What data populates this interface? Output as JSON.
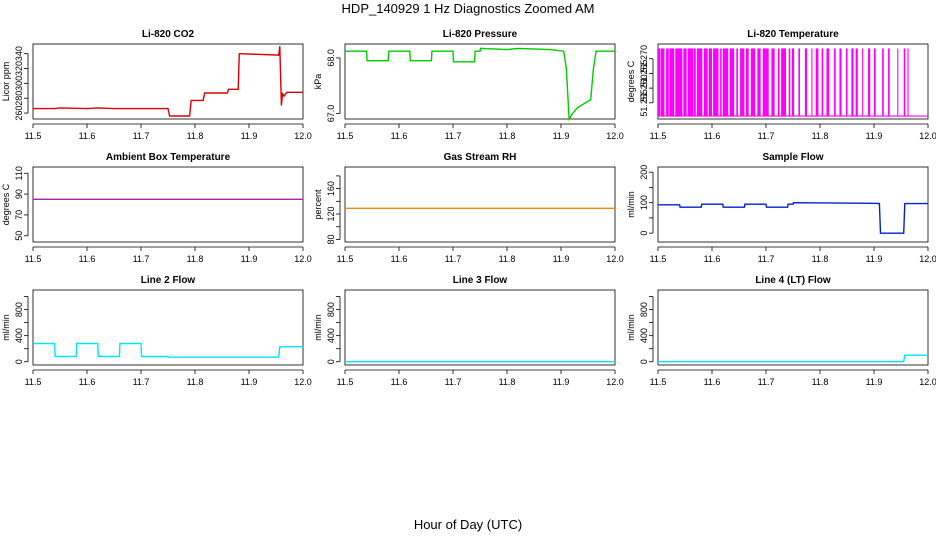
{
  "figure": {
    "title": "HDP_140929  1 Hz Diagnostics Zoomed AM",
    "xlabel": "Hour of Day (UTC)"
  },
  "chart_data": [
    {
      "type": "line",
      "title": "Li-820 CO2",
      "ylabel": "Licor ppm",
      "xlim": [
        11.5,
        12.0
      ],
      "ylim": [
        252,
        353
      ],
      "xticks": [
        11.5,
        11.6,
        11.7,
        11.8,
        11.9,
        12.0
      ],
      "xtick_labels": [
        "11.5",
        "11.6",
        "11.7",
        "11.8",
        "11.9",
        "12.0"
      ],
      "yticks": [
        260,
        280,
        300,
        320,
        340
      ],
      "ytick_labels": [
        "260",
        "280",
        "300",
        "320",
        "340"
      ],
      "color": "#dd0000",
      "series": [
        {
          "name": "CO2",
          "x": [
            11.5,
            11.54,
            11.55,
            11.6,
            11.62,
            11.65,
            11.7,
            11.75,
            11.753,
            11.79,
            11.793,
            11.815,
            11.818,
            11.86,
            11.862,
            11.88,
            11.882,
            11.955,
            11.957,
            11.958,
            11.96,
            11.962,
            11.965,
            11.97,
            11.98,
            12.0
          ],
          "y": [
            266,
            266,
            267,
            266,
            267,
            266,
            266,
            266,
            256,
            256,
            277,
            277,
            287,
            287,
            292,
            292,
            340,
            338,
            350,
            325,
            270,
            286,
            283,
            288,
            288,
            288
          ]
        }
      ]
    },
    {
      "type": "line",
      "title": "Li-820 Pressure",
      "ylabel": "kPa",
      "xlim": [
        11.5,
        12.0
      ],
      "ylim": [
        66.9,
        68.25
      ],
      "xticks": [
        11.5,
        11.6,
        11.7,
        11.8,
        11.9,
        12.0
      ],
      "xtick_labels": [
        "11.5",
        "11.6",
        "11.7",
        "11.8",
        "11.9",
        "12.0"
      ],
      "yticks": [
        67.0,
        68.0
      ],
      "ytick_labels": [
        "67.0",
        "68.0"
      ],
      "color": "#00cc00",
      "series": [
        {
          "name": "Pressure",
          "x": [
            11.5,
            11.54,
            11.541,
            11.58,
            11.581,
            11.62,
            11.621,
            11.66,
            11.661,
            11.7,
            11.701,
            11.74,
            11.741,
            11.75,
            11.751,
            11.8,
            11.82,
            11.88,
            11.905,
            11.91,
            11.915,
            11.92,
            11.93,
            11.955,
            11.96,
            11.965,
            11.97,
            12.0
          ],
          "y": [
            68.12,
            68.12,
            67.95,
            67.95,
            68.12,
            68.12,
            67.95,
            67.95,
            68.12,
            68.12,
            67.93,
            67.93,
            68.12,
            68.12,
            68.17,
            68.15,
            68.17,
            68.15,
            68.12,
            67.8,
            66.9,
            66.98,
            67.1,
            67.25,
            67.8,
            68.12,
            68.12,
            68.12
          ]
        }
      ]
    },
    {
      "type": "line",
      "title": "Li-820 Temperature",
      "ylabel": "degrees C",
      "xlim": [
        11.5,
        12.0
      ],
      "ylim": [
        51.2495,
        51.275
      ],
      "xticks": [
        11.5,
        11.6,
        11.7,
        11.8,
        11.9,
        12.0
      ],
      "xtick_labels": [
        "11.5",
        "11.6",
        "11.7",
        "11.8",
        "11.9",
        "12.0"
      ],
      "yticks": [
        51.255,
        51.26,
        51.265,
        51.27
      ],
      "ytick_labels": [
        "51.255",
        "51.260",
        "51.265",
        "51.270"
      ],
      "color": "#ff00ff",
      "low_value": 51.2505,
      "high_value": 51.2735,
      "high_intervals": [
        [
          11.5,
          11.504
        ],
        [
          11.505,
          11.512
        ],
        [
          11.515,
          11.52
        ],
        [
          11.521,
          11.53
        ],
        [
          11.532,
          11.545
        ],
        [
          11.547,
          11.553
        ],
        [
          11.555,
          11.565
        ],
        [
          11.566,
          11.57
        ],
        [
          11.572,
          11.582
        ],
        [
          11.585,
          11.592
        ],
        [
          11.594,
          11.6
        ],
        [
          11.602,
          11.612
        ],
        [
          11.615,
          11.618
        ],
        [
          11.62,
          11.63
        ],
        [
          11.633,
          11.641
        ],
        [
          11.645,
          11.648
        ],
        [
          11.652,
          11.66
        ],
        [
          11.663,
          11.668
        ],
        [
          11.672,
          11.68
        ],
        [
          11.684,
          11.69
        ],
        [
          11.694,
          11.705
        ],
        [
          11.71,
          11.716
        ],
        [
          11.722,
          11.725
        ],
        [
          11.728,
          11.737
        ],
        [
          11.742,
          11.745
        ],
        [
          11.748,
          11.752
        ],
        [
          11.76,
          11.763
        ],
        [
          11.772,
          11.776
        ],
        [
          11.784,
          11.786
        ],
        [
          11.792,
          11.797
        ],
        [
          11.803,
          11.806
        ],
        [
          11.812,
          11.817
        ],
        [
          11.826,
          11.829
        ],
        [
          11.836,
          11.84
        ],
        [
          11.848,
          11.851
        ],
        [
          11.858,
          11.862
        ],
        [
          11.866,
          11.87
        ],
        [
          11.878,
          11.88
        ],
        [
          11.889,
          11.893
        ],
        [
          11.9,
          11.903
        ],
        [
          11.915,
          11.918
        ],
        [
          11.926,
          11.929
        ],
        [
          11.943,
          11.945
        ],
        [
          11.955,
          11.958
        ],
        [
          11.962,
          11.964
        ]
      ]
    },
    {
      "type": "line",
      "title": "Ambient Box Temperature",
      "ylabel": "degrees C",
      "xlim": [
        11.5,
        12.0
      ],
      "ylim": [
        44,
        116
      ],
      "xticks": [
        11.5,
        11.6,
        11.7,
        11.8,
        11.9,
        12.0
      ],
      "xtick_labels": [
        "11.5",
        "11.6",
        "11.7",
        "11.8",
        "11.9",
        "12.0"
      ],
      "yticks": [
        50,
        70,
        90,
        110
      ],
      "ytick_labels": [
        "50",
        "70",
        "90",
        "110"
      ],
      "color": "#aa22aa",
      "series": [
        {
          "name": "Ambient",
          "x": [
            11.5,
            12.0
          ],
          "y": [
            85,
            85
          ]
        }
      ]
    },
    {
      "type": "line",
      "title": "Gas Stream RH",
      "ylabel": "percent",
      "xlim": [
        11.5,
        12.0
      ],
      "ylim": [
        76,
        194
      ],
      "xticks": [
        11.5,
        11.6,
        11.7,
        11.8,
        11.9,
        12.0
      ],
      "xtick_labels": [
        "11.5",
        "11.6",
        "11.7",
        "11.8",
        "11.9",
        "12.0"
      ],
      "yticks": [
        80,
        100,
        120,
        140,
        160,
        180
      ],
      "ytick_labels": [
        "80",
        "",
        "120",
        "",
        "160",
        ""
      ],
      "color": "#ff8800",
      "series": [
        {
          "name": "RH",
          "x": [
            11.5,
            12.0
          ],
          "y": [
            129,
            129
          ]
        }
      ]
    },
    {
      "type": "line",
      "title": "Sample Flow",
      "ylabel": "ml/min",
      "xlim": [
        11.5,
        12.0
      ],
      "ylim": [
        -29,
        217
      ],
      "xticks": [
        11.5,
        11.6,
        11.7,
        11.8,
        11.9,
        12.0
      ],
      "xtick_labels": [
        "11.5",
        "11.6",
        "11.7",
        "11.8",
        "11.9",
        "12.0"
      ],
      "yticks": [
        0,
        50,
        100,
        150,
        200
      ],
      "ytick_labels": [
        "0",
        "",
        "100",
        "",
        "200"
      ],
      "color": "#0022cc",
      "series": [
        {
          "name": "Flow",
          "x": [
            11.5,
            11.54,
            11.541,
            11.58,
            11.581,
            11.62,
            11.621,
            11.66,
            11.661,
            11.7,
            11.701,
            11.74,
            11.741,
            11.75,
            11.751,
            11.9,
            11.91,
            11.912,
            11.955,
            11.957,
            12.0
          ],
          "y": [
            93,
            93,
            85,
            85,
            95,
            95,
            85,
            85,
            95,
            95,
            85,
            85,
            95,
            95,
            100,
            98,
            97,
            0,
            0,
            97,
            97
          ]
        }
      ]
    },
    {
      "type": "line",
      "title": "Line 2 Flow",
      "ylabel": "ml/min",
      "xlim": [
        11.5,
        12.0
      ],
      "ylim": [
        -50,
        1100
      ],
      "xticks": [
        11.5,
        11.6,
        11.7,
        11.8,
        11.9,
        12.0
      ],
      "xtick_labels": [
        "11.5",
        "11.6",
        "11.7",
        "11.8",
        "11.9",
        "12.0"
      ],
      "yticks": [
        0,
        200,
        400,
        600,
        800,
        1000
      ],
      "ytick_labels": [
        "0",
        "",
        "400",
        "",
        "800",
        ""
      ],
      "color": "#00e5ff",
      "series": [
        {
          "name": "Line2",
          "x": [
            11.5,
            11.54,
            11.541,
            11.58,
            11.581,
            11.62,
            11.621,
            11.66,
            11.661,
            11.7,
            11.701,
            11.75,
            11.751,
            11.955,
            11.957,
            12.0
          ],
          "y": [
            280,
            280,
            80,
            80,
            280,
            280,
            80,
            80,
            280,
            280,
            80,
            80,
            70,
            70,
            230,
            230
          ]
        }
      ]
    },
    {
      "type": "line",
      "title": "Line 3 Flow",
      "ylabel": "ml/min",
      "xlim": [
        11.5,
        12.0
      ],
      "ylim": [
        -50,
        1100
      ],
      "xticks": [
        11.5,
        11.6,
        11.7,
        11.8,
        11.9,
        12.0
      ],
      "xtick_labels": [
        "11.5",
        "11.6",
        "11.7",
        "11.8",
        "11.9",
        "12.0"
      ],
      "yticks": [
        0,
        200,
        400,
        600,
        800,
        1000
      ],
      "ytick_labels": [
        "0",
        "",
        "400",
        "",
        "800",
        ""
      ],
      "color": "#00e5ff",
      "series": [
        {
          "name": "Line3",
          "x": [
            11.5,
            12.0
          ],
          "y": [
            0,
            0
          ]
        }
      ]
    },
    {
      "type": "line",
      "title": "Line 4 (LT) Flow",
      "ylabel": "ml/min",
      "xlim": [
        11.5,
        12.0
      ],
      "ylim": [
        -50,
        1100
      ],
      "xticks": [
        11.5,
        11.6,
        11.7,
        11.8,
        11.9,
        12.0
      ],
      "xtick_labels": [
        "11.5",
        "11.6",
        "11.7",
        "11.8",
        "11.9",
        "12.0"
      ],
      "yticks": [
        0,
        200,
        400,
        600,
        800,
        1000
      ],
      "ytick_labels": [
        "0",
        "",
        "400",
        "",
        "800",
        ""
      ],
      "color": "#00e5ff",
      "series": [
        {
          "name": "Line4",
          "x": [
            11.5,
            11.955,
            11.957,
            12.0
          ],
          "y": [
            0,
            0,
            100,
            100
          ]
        }
      ]
    }
  ]
}
